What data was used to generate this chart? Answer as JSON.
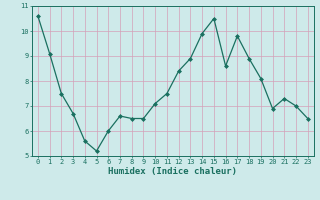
{
  "x": [
    0,
    1,
    2,
    3,
    4,
    5,
    6,
    7,
    8,
    9,
    10,
    11,
    12,
    13,
    14,
    15,
    16,
    17,
    18,
    19,
    20,
    21,
    22,
    23
  ],
  "y": [
    10.6,
    9.1,
    7.5,
    6.7,
    5.6,
    5.2,
    6.0,
    6.6,
    6.5,
    6.5,
    7.1,
    7.5,
    8.4,
    8.9,
    9.9,
    10.5,
    8.6,
    9.8,
    8.9,
    8.1,
    6.9,
    7.3,
    7.0,
    6.5
  ],
  "xlabel": "Humidex (Indice chaleur)",
  "ylim": [
    5,
    11
  ],
  "xlim": [
    -0.5,
    23.5
  ],
  "yticks": [
    5,
    6,
    7,
    8,
    9,
    10,
    11
  ],
  "xticks": [
    0,
    1,
    2,
    3,
    4,
    5,
    6,
    7,
    8,
    9,
    10,
    11,
    12,
    13,
    14,
    15,
    16,
    17,
    18,
    19,
    20,
    21,
    22,
    23
  ],
  "line_color": "#1a7060",
  "marker": "D",
  "marker_size": 2.0,
  "bg_color": "#ceeaea",
  "grid_color": "#d4a0b8",
  "label_color": "#1a7060",
  "tick_color": "#1a7060",
  "tick_fontsize": 5.0,
  "xlabel_fontsize": 6.5,
  "linewidth": 0.9
}
